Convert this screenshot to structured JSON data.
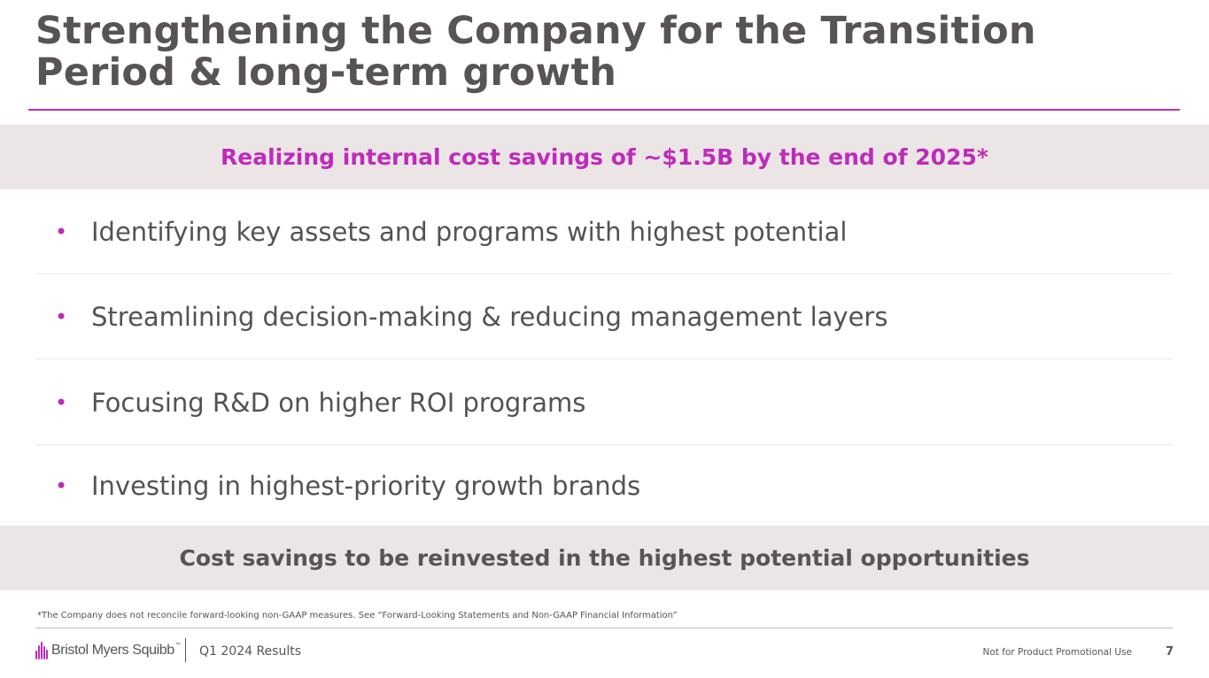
{
  "slide": {
    "title": "Strengthening the Company for the Transition Period & long-term growth",
    "top_banner": "Realizing internal cost savings of ~$1.5B by the end of 2025*",
    "bullets": [
      "Identifying key assets and programs with highest potential",
      "Streamlining decision-making & reducing management layers",
      "Focusing R&D on higher ROI programs",
      "Investing in highest-priority growth brands"
    ],
    "bullet_marker": "•",
    "bottom_banner": "Cost savings to be reinvested in the highest potential opportunities",
    "footnote": "*The Company does not reconcile forward-looking non-GAAP measures. See “Forward-Looking Statements and Non-GAAP Financial Information”"
  },
  "footer": {
    "logo_text": "Bristol Myers Squibb",
    "logo_tm": "™",
    "report_label": "Q1 2024 Results",
    "disclaimer": "Not for Product Promotional Use",
    "page_number": "7"
  },
  "colors": {
    "accent": "#be2bbb",
    "band_bg": "#ebe5e5",
    "text": "#535353"
  }
}
